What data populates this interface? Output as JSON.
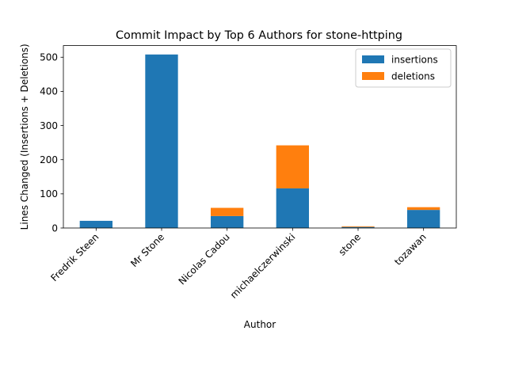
{
  "chart_data": {
    "type": "bar",
    "stacked": true,
    "title": "Commit Impact by Top 6 Authors for stone-httping",
    "xlabel": "Author",
    "ylabel": "Lines Changed (Insertions + Deletions)",
    "categories": [
      "Fredrik Steen",
      "Mr Stone",
      "Nicolas Cadou",
      "michaelczerwinski",
      "stone",
      "tozawan"
    ],
    "series": [
      {
        "name": "insertions",
        "color": "#1f77b4",
        "values": [
          21,
          508,
          35,
          116,
          3,
          53
        ]
      },
      {
        "name": "deletions",
        "color": "#ff7f0e",
        "values": [
          0,
          0,
          24,
          126,
          2,
          8
        ]
      }
    ],
    "yticks": [
      0,
      100,
      200,
      300,
      400,
      500
    ],
    "ylim": [
      0,
      534
    ],
    "legend_position": "top-right",
    "grid": false
  }
}
